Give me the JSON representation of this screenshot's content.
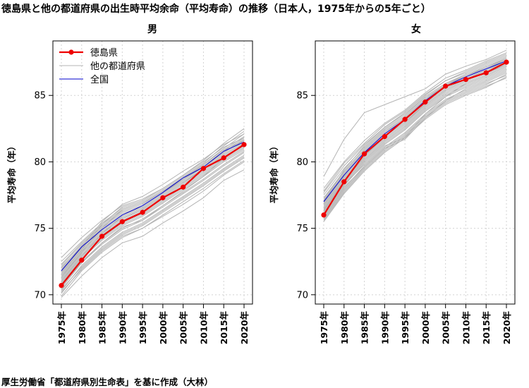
{
  "title": "徳島県と他の都道府県の出生時平均余命（平均寿命）の推移（日本人，1975年からの5年ごと）",
  "footer": "厚生労働省「都道府県別生命表」を基に作成（大林）",
  "colors": {
    "tokushima": "#ee0000",
    "others": "#b4b4b4",
    "national": "#0000cc",
    "grid": "#d3d3d3",
    "axis": "#000000"
  },
  "chart_data": [
    {
      "type": "line",
      "title": "男",
      "xlabel": "",
      "ylabel": "平均寿命（年）",
      "categories": [
        "1975年",
        "1980年",
        "1985年",
        "1990年",
        "1995年",
        "2000年",
        "2005年",
        "2010年",
        "2015年",
        "2020年"
      ],
      "ylim": [
        69.3,
        89.1
      ],
      "yticks": [
        70,
        75,
        80,
        85
      ],
      "grid": true,
      "legend_position": "top-left",
      "legend": [
        "徳島県",
        "他の都道府県",
        "全国"
      ],
      "series": [
        {
          "name": "徳島県",
          "values": [
            70.7,
            72.6,
            74.4,
            75.5,
            76.2,
            77.3,
            78.1,
            79.5,
            80.3,
            81.3
          ]
        },
        {
          "name": "全国",
          "values": [
            71.8,
            73.6,
            74.9,
            76.0,
            76.7,
            77.7,
            78.8,
            79.6,
            80.8,
            81.5
          ]
        }
      ],
      "other_prefectures": [
        [
          72.8,
          74.3,
          75.6,
          76.7,
          77.2,
          78.0,
          79.0,
          80.1,
          81.4,
          82.5
        ],
        [
          72.5,
          74.0,
          75.4,
          76.5,
          77.0,
          77.9,
          78.9,
          79.9,
          81.2,
          82.3
        ],
        [
          72.3,
          73.9,
          75.3,
          76.4,
          76.9,
          77.8,
          78.8,
          79.8,
          81.0,
          82.1
        ],
        [
          72.2,
          73.8,
          75.2,
          76.3,
          76.8,
          77.8,
          78.8,
          79.8,
          80.9,
          81.9
        ],
        [
          72.0,
          73.7,
          75.1,
          76.2,
          76.7,
          77.7,
          78.7,
          79.7,
          80.8,
          81.8
        ],
        [
          71.9,
          73.6,
          75.0,
          76.1,
          76.6,
          77.6,
          78.7,
          79.6,
          80.7,
          81.7
        ],
        [
          71.8,
          73.5,
          74.9,
          76.0,
          76.6,
          77.6,
          78.6,
          79.6,
          80.7,
          81.6
        ],
        [
          71.6,
          73.4,
          74.8,
          75.9,
          76.5,
          77.5,
          78.5,
          79.5,
          80.6,
          81.5
        ],
        [
          71.5,
          73.3,
          74.7,
          75.8,
          76.4,
          77.4,
          78.4,
          79.4,
          80.5,
          81.4
        ],
        [
          71.4,
          73.2,
          74.6,
          75.7,
          76.4,
          77.4,
          78.4,
          79.4,
          80.5,
          81.4
        ],
        [
          71.3,
          73.1,
          74.5,
          75.6,
          76.3,
          77.3,
          78.3,
          79.3,
          80.4,
          81.3
        ],
        [
          71.2,
          73.0,
          74.4,
          75.5,
          76.2,
          77.2,
          78.2,
          79.2,
          80.3,
          81.2
        ],
        [
          71.0,
          72.9,
          74.3,
          75.4,
          76.1,
          77.1,
          78.1,
          79.1,
          80.2,
          81.1
        ],
        [
          70.9,
          72.8,
          74.2,
          75.3,
          76.0,
          77.0,
          78.0,
          79.0,
          80.1,
          81.0
        ],
        [
          70.8,
          72.7,
          74.1,
          75.2,
          75.9,
          76.9,
          77.9,
          78.9,
          80.0,
          80.9
        ],
        [
          70.6,
          72.5,
          73.9,
          75.0,
          75.7,
          76.7,
          77.7,
          78.7,
          79.8,
          80.8
        ],
        [
          70.5,
          72.4,
          73.8,
          74.9,
          75.6,
          76.6,
          77.6,
          78.6,
          79.7,
          80.7
        ],
        [
          70.3,
          72.2,
          73.6,
          74.7,
          75.4,
          76.4,
          77.4,
          78.4,
          79.5,
          80.5
        ],
        [
          70.1,
          72.0,
          73.4,
          74.5,
          75.2,
          76.2,
          77.2,
          78.2,
          79.3,
          80.3
        ],
        [
          69.9,
          71.8,
          73.2,
          74.3,
          75.0,
          76.0,
          77.0,
          78.0,
          79.1,
          80.1
        ],
        [
          72.1,
          73.6,
          75.5,
          76.8,
          77.4,
          78.3,
          79.3,
          80.2,
          81.3,
          82.1
        ],
        [
          71.7,
          73.4,
          75.3,
          76.6,
          77.1,
          78.0,
          79.0,
          80.0,
          81.1,
          81.8
        ],
        [
          71.3,
          73.2,
          75.0,
          76.4,
          76.9,
          77.8,
          78.7,
          79.8,
          80.9,
          81.6
        ],
        [
          71.1,
          72.9,
          74.6,
          75.9,
          76.5,
          77.5,
          78.5,
          79.4,
          80.5,
          81.4
        ],
        [
          70.7,
          72.4,
          73.9,
          75.1,
          75.6,
          76.7,
          77.8,
          78.9,
          80.3,
          81.2
        ],
        [
          70.2,
          71.9,
          73.3,
          74.4,
          75.0,
          75.9,
          76.8,
          77.8,
          79.0,
          80.0
        ],
        [
          69.8,
          71.4,
          72.8,
          73.9,
          74.4,
          75.4,
          76.3,
          77.3,
          78.6,
          79.4
        ],
        [
          70.4,
          72.1,
          73.5,
          74.6,
          75.3,
          76.3,
          77.3,
          78.3,
          79.4,
          80.4
        ]
      ]
    },
    {
      "type": "line",
      "title": "女",
      "xlabel": "",
      "ylabel": "平均寿命（年）",
      "categories": [
        "1975年",
        "1980年",
        "1985年",
        "1990年",
        "1995年",
        "2000年",
        "2005年",
        "2010年",
        "2015年",
        "2020年"
      ],
      "ylim": [
        69.3,
        89.1
      ],
      "yticks": [
        70,
        75,
        80,
        85
      ],
      "grid": true,
      "series": [
        {
          "name": "徳島県",
          "values": [
            76.0,
            78.5,
            80.6,
            81.9,
            83.2,
            84.5,
            85.7,
            86.2,
            86.7,
            87.5
          ]
        },
        {
          "name": "全国",
          "values": [
            77.0,
            79.0,
            80.7,
            82.1,
            83.2,
            84.6,
            85.7,
            86.4,
            87.0,
            87.6
          ]
        }
      ],
      "other_prefectures": [
        [
          78.9,
          81.7,
          83.7,
          84.3,
          84.9,
          85.5,
          86.6,
          87.2,
          87.7,
          88.4
        ],
        [
          78.0,
          80.0,
          81.6,
          82.9,
          83.9,
          85.2,
          86.3,
          86.9,
          87.6,
          88.2
        ],
        [
          77.7,
          79.7,
          81.3,
          82.6,
          83.7,
          85.0,
          86.1,
          86.7,
          87.4,
          88.0
        ],
        [
          77.5,
          79.5,
          81.1,
          82.5,
          83.5,
          84.9,
          85.9,
          86.6,
          87.3,
          87.9
        ],
        [
          77.3,
          79.3,
          81.0,
          82.4,
          83.4,
          84.8,
          85.8,
          86.5,
          87.2,
          87.8
        ],
        [
          77.2,
          79.2,
          80.9,
          82.3,
          83.3,
          84.7,
          85.8,
          86.4,
          87.1,
          87.7
        ],
        [
          77.1,
          79.1,
          80.8,
          82.2,
          83.3,
          84.7,
          85.7,
          86.4,
          87.0,
          87.7
        ],
        [
          76.9,
          79.0,
          80.7,
          82.1,
          83.2,
          84.6,
          85.6,
          86.3,
          86.9,
          87.6
        ],
        [
          76.8,
          78.9,
          80.6,
          82.0,
          83.1,
          84.5,
          85.6,
          86.2,
          86.9,
          87.5
        ],
        [
          76.7,
          78.8,
          80.5,
          81.9,
          83.0,
          84.4,
          85.5,
          86.2,
          86.8,
          87.5
        ],
        [
          76.6,
          78.7,
          80.4,
          81.8,
          82.9,
          84.3,
          85.4,
          86.1,
          86.7,
          87.4
        ],
        [
          76.5,
          78.6,
          80.3,
          81.7,
          82.8,
          84.2,
          85.3,
          86.0,
          86.6,
          87.3
        ],
        [
          76.4,
          78.5,
          80.2,
          81.6,
          82.7,
          84.1,
          85.2,
          85.9,
          86.5,
          87.2
        ],
        [
          76.3,
          78.4,
          80.1,
          81.5,
          82.6,
          84.0,
          85.1,
          85.8,
          86.4,
          87.1
        ],
        [
          76.2,
          78.3,
          80.0,
          81.4,
          82.5,
          83.9,
          85.0,
          85.7,
          86.3,
          87.0
        ],
        [
          76.1,
          78.2,
          79.9,
          81.3,
          82.4,
          83.8,
          84.9,
          85.6,
          86.2,
          86.9
        ],
        [
          75.9,
          78.0,
          79.7,
          81.1,
          82.2,
          83.6,
          84.7,
          85.4,
          86.0,
          86.7
        ],
        [
          75.7,
          77.8,
          79.5,
          80.9,
          82.0,
          83.4,
          84.5,
          85.2,
          85.8,
          86.6
        ],
        [
          75.5,
          77.6,
          79.3,
          80.7,
          81.8,
          83.2,
          84.3,
          85.0,
          85.6,
          86.4
        ],
        [
          77.8,
          79.9,
          81.4,
          82.8,
          83.8,
          85.1,
          86.1,
          86.8,
          87.5,
          88.1
        ],
        [
          76.4,
          78.3,
          79.8,
          81.2,
          81.8,
          83.6,
          84.9,
          85.9,
          86.5,
          87.2
        ],
        [
          76.0,
          78.1,
          79.6,
          81.0,
          81.7,
          83.3,
          84.6,
          85.5,
          86.1,
          86.8
        ],
        [
          77.0,
          79.4,
          81.2,
          82.6,
          83.6,
          84.9,
          85.9,
          86.5,
          87.1,
          87.8
        ],
        [
          76.3,
          78.6,
          80.4,
          81.9,
          83.0,
          84.3,
          85.4,
          86.1,
          86.7,
          87.3
        ],
        [
          75.8,
          77.9,
          79.6,
          81.0,
          82.1,
          83.5,
          84.6,
          85.3,
          85.9,
          86.5
        ],
        [
          75.6,
          77.7,
          79.4,
          80.8,
          81.9,
          83.3,
          84.4,
          85.1,
          85.7,
          86.3
        ]
      ]
    }
  ]
}
